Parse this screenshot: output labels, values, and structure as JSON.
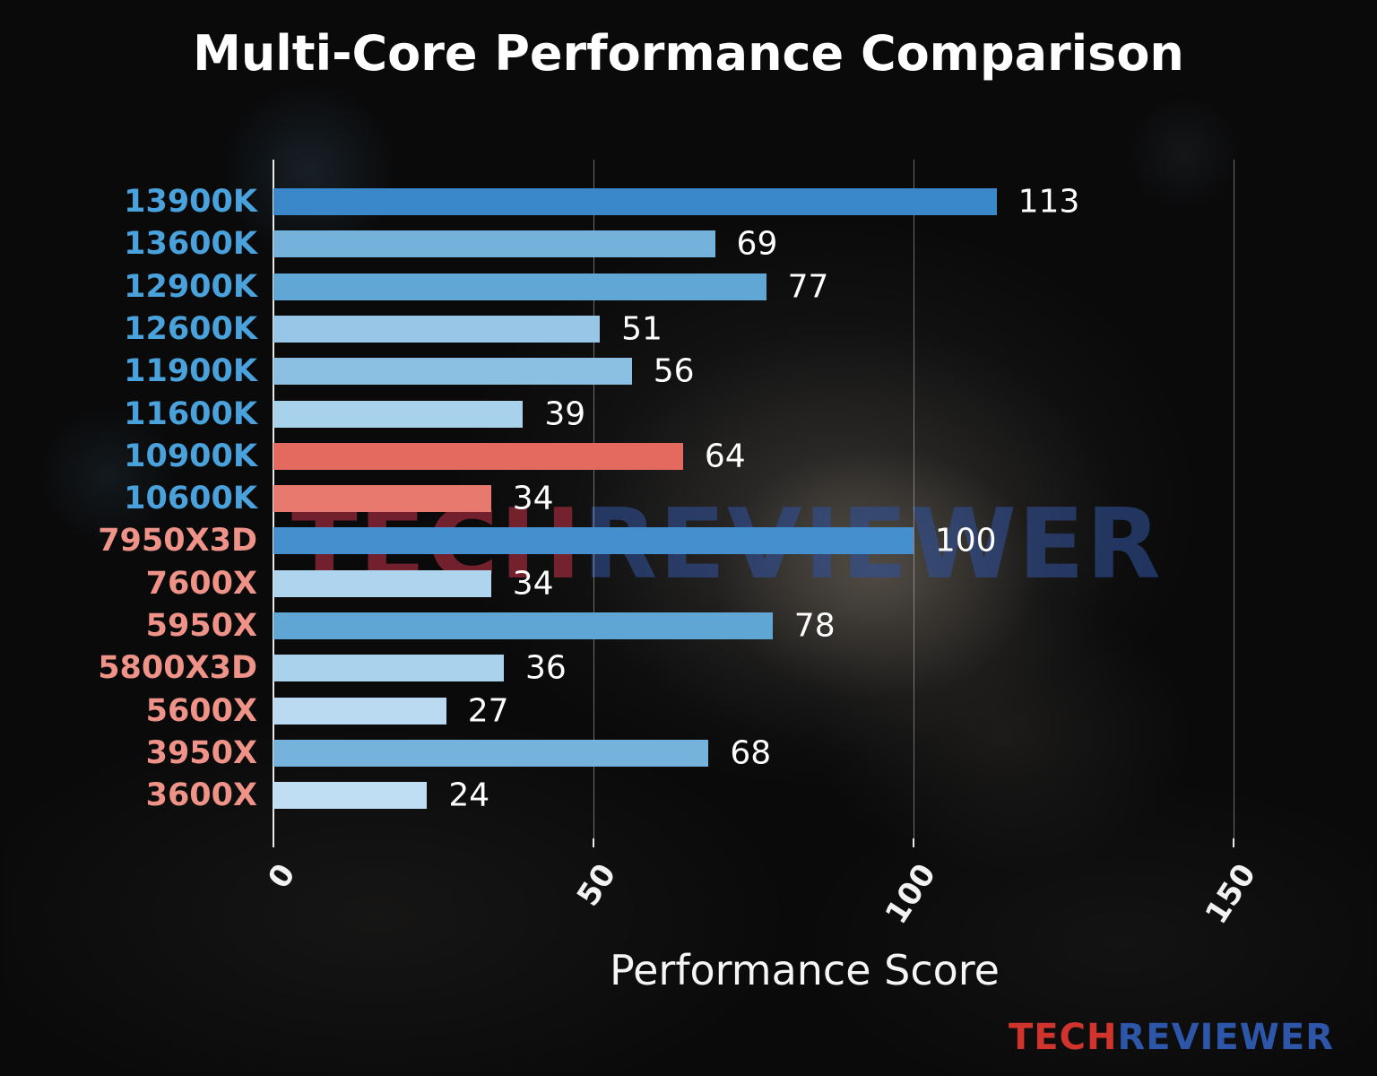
{
  "title": "Multi-Core Performance Comparison",
  "chart_data": {
    "type": "bar",
    "orientation": "horizontal",
    "title": "Multi-Core Performance Comparison",
    "xlabel": "Performance Score",
    "xlim": [
      0,
      166
    ],
    "xticks": [
      0,
      50,
      100,
      150
    ],
    "grid": true,
    "legend": "none",
    "categories": [
      "13900K",
      "13600K",
      "12900K",
      "12600K",
      "11900K",
      "11600K",
      "10900K",
      "10600K",
      "7950X3D",
      "7600X",
      "5950X",
      "5800X3D",
      "5600X",
      "3950X",
      "3600X"
    ],
    "values": [
      113,
      69,
      77,
      51,
      56,
      39,
      64,
      34,
      100,
      34,
      78,
      36,
      27,
      68,
      24
    ],
    "bar_colors": [
      "#3a87c9",
      "#74b2dc",
      "#60a7d6",
      "#97c6e6",
      "#8cc0e3",
      "#a8d1ec",
      "#e4695f",
      "#e8796e",
      "#468fce",
      "#aed4ee",
      "#5fa6d5",
      "#abd2ed",
      "#b9daf1",
      "#76b3dc",
      "#c0def3"
    ],
    "label_colors": [
      "#4aa2dc",
      "#4aa2dc",
      "#4aa2dc",
      "#4aa2dc",
      "#4aa2dc",
      "#4aa2dc",
      "#4aa2dc",
      "#4aa2dc",
      "#ef9288",
      "#ef9288",
      "#ef9288",
      "#ef9288",
      "#ef9288",
      "#ef9288",
      "#ef9288"
    ],
    "value_label_color": "#ffffff"
  },
  "watermark": {
    "left": "TECH",
    "right": "REVIEWER"
  },
  "brand": {
    "left": "TECH",
    "right": "REVIEWER"
  }
}
